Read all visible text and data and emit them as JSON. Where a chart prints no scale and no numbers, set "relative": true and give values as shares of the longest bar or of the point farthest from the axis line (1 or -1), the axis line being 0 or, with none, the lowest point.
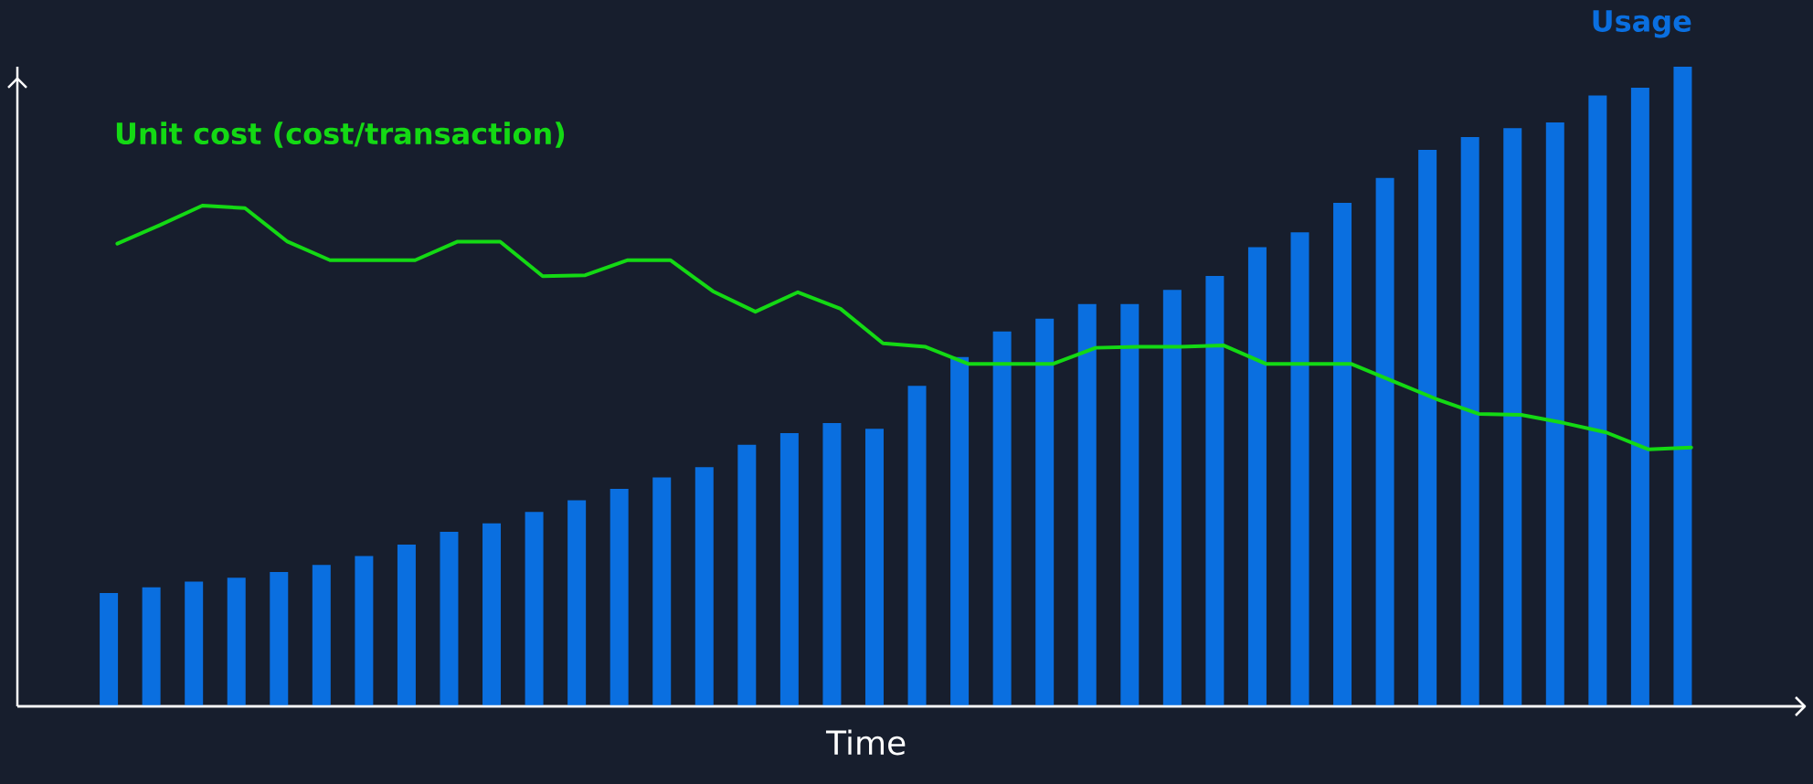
{
  "chart_data": [
    {
      "type": "bar",
      "relative": true,
      "xlabel": "Time",
      "categories": [
        null,
        null,
        null,
        null,
        null,
        null,
        null,
        null,
        null,
        null,
        null,
        null,
        null,
        null,
        null,
        null,
        null,
        null,
        null,
        null,
        null,
        null,
        null,
        null,
        null,
        null,
        null,
        null,
        null,
        null,
        null,
        null,
        null,
        null,
        null,
        null,
        null,
        null
      ],
      "series": [
        {
          "name": "Usage",
          "color": "#0a6fe0",
          "values": [
            0.177,
            0.186,
            0.195,
            0.201,
            0.21,
            0.221,
            0.235,
            0.253,
            0.273,
            0.286,
            0.304,
            0.322,
            0.34,
            0.358,
            0.374,
            0.409,
            0.427,
            0.443,
            0.434,
            0.501,
            0.546,
            0.586,
            0.606,
            0.629,
            0.629,
            0.651,
            0.673,
            0.718,
            0.741,
            0.787,
            0.826,
            0.87,
            0.89,
            0.904,
            0.913,
            0.955,
            0.967,
            1.0
          ]
        }
      ]
    },
    {
      "type": "line",
      "relative": true,
      "categories": [
        null,
        null,
        null,
        null,
        null,
        null,
        null,
        null,
        null,
        null,
        null,
        null,
        null,
        null,
        null,
        null,
        null,
        null,
        null,
        null,
        null,
        null,
        null,
        null,
        null,
        null,
        null,
        null,
        null,
        null,
        null,
        null,
        null,
        null,
        null,
        null,
        null,
        null
      ],
      "series": [
        {
          "name": "Unit cost (cost/transaction)",
          "color": "#14d914",
          "values": [
            0.924,
            0.961,
            1.0,
            0.995,
            0.928,
            0.891,
            0.891,
            0.891,
            0.928,
            0.928,
            0.859,
            0.861,
            0.891,
            0.891,
            0.829,
            0.788,
            0.827,
            0.794,
            0.725,
            0.718,
            0.684,
            0.684,
            0.684,
            0.716,
            0.718,
            0.718,
            0.721,
            0.684,
            0.684,
            0.684,
            0.649,
            0.614,
            0.584,
            0.582,
            0.566,
            0.547,
            0.513,
            0.517
          ]
        }
      ]
    }
  ]
}
